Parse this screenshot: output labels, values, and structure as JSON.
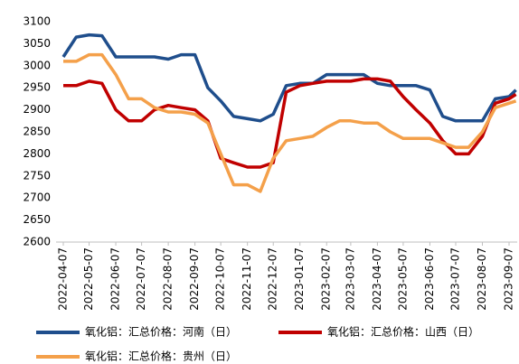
{
  "chart_data": {
    "type": "line",
    "x": [
      "2022-04-07",
      "2022-04-22",
      "2022-05-07",
      "2022-05-22",
      "2022-06-07",
      "2022-06-22",
      "2022-07-07",
      "2022-07-22",
      "2022-08-07",
      "2022-08-22",
      "2022-09-07",
      "2022-09-22",
      "2022-10-07",
      "2022-10-22",
      "2022-11-07",
      "2022-11-22",
      "2022-12-07",
      "2022-12-22",
      "2023-01-07",
      "2023-01-22",
      "2023-02-07",
      "2023-02-22",
      "2023-03-07",
      "2023-03-22",
      "2023-04-07",
      "2023-04-22",
      "2023-05-07",
      "2023-05-22",
      "2023-06-07",
      "2023-06-22",
      "2023-07-07",
      "2023-07-22",
      "2023-08-07",
      "2023-08-22",
      "2023-09-07",
      "2023-09-15"
    ],
    "series": [
      {
        "name": "氧化铝：汇总价格：河南（日）",
        "color": "#1f4e8c",
        "values": [
          3020,
          3065,
          3070,
          3068,
          3020,
          3020,
          3020,
          3020,
          3015,
          3025,
          3025,
          2950,
          2920,
          2885,
          2880,
          2875,
          2890,
          2955,
          2960,
          2960,
          2980,
          2980,
          2980,
          2980,
          2960,
          2955,
          2955,
          2955,
          2945,
          2885,
          2875,
          2875,
          2875,
          2925,
          2930,
          2945
        ]
      },
      {
        "name": "氧化铝：汇总价格：山西（日）",
        "color": "#c00000",
        "values": [
          2955,
          2955,
          2965,
          2960,
          2900,
          2875,
          2875,
          2900,
          2910,
          2905,
          2900,
          2875,
          2790,
          2780,
          2770,
          2770,
          2780,
          2940,
          2955,
          2960,
          2965,
          2965,
          2965,
          2970,
          2970,
          2965,
          2930,
          2900,
          2870,
          2830,
          2800,
          2800,
          2840,
          2915,
          2925,
          2935
        ]
      },
      {
        "name": "氧化铝：汇总价格：贵州（日）",
        "color": "#f4a04a",
        "values": [
          3010,
          3010,
          3025,
          3025,
          2980,
          2925,
          2925,
          2905,
          2895,
          2895,
          2890,
          2870,
          2800,
          2730,
          2730,
          2715,
          2790,
          2830,
          2835,
          2840,
          2860,
          2875,
          2875,
          2870,
          2870,
          2850,
          2835,
          2835,
          2835,
          2825,
          2815,
          2815,
          2850,
          2905,
          2915,
          2920
        ]
      }
    ],
    "xticks": [
      "2022-04-07",
      "2022-05-07",
      "2022-06-07",
      "2022-07-07",
      "2022-08-07",
      "2022-09-07",
      "2022-10-07",
      "2022-11-07",
      "2022-12-07",
      "2023-01-07",
      "2023-02-07",
      "2023-03-07",
      "2023-04-07",
      "2023-05-07",
      "2023-06-07",
      "2023-07-07",
      "2023-08-07",
      "2023-09-07"
    ],
    "ylim": [
      2600,
      3100
    ],
    "yticks": [
      2600,
      2650,
      2700,
      2750,
      2800,
      2850,
      2900,
      2950,
      3000,
      3050,
      3100
    ],
    "grid": false,
    "legend": "bottom"
  }
}
